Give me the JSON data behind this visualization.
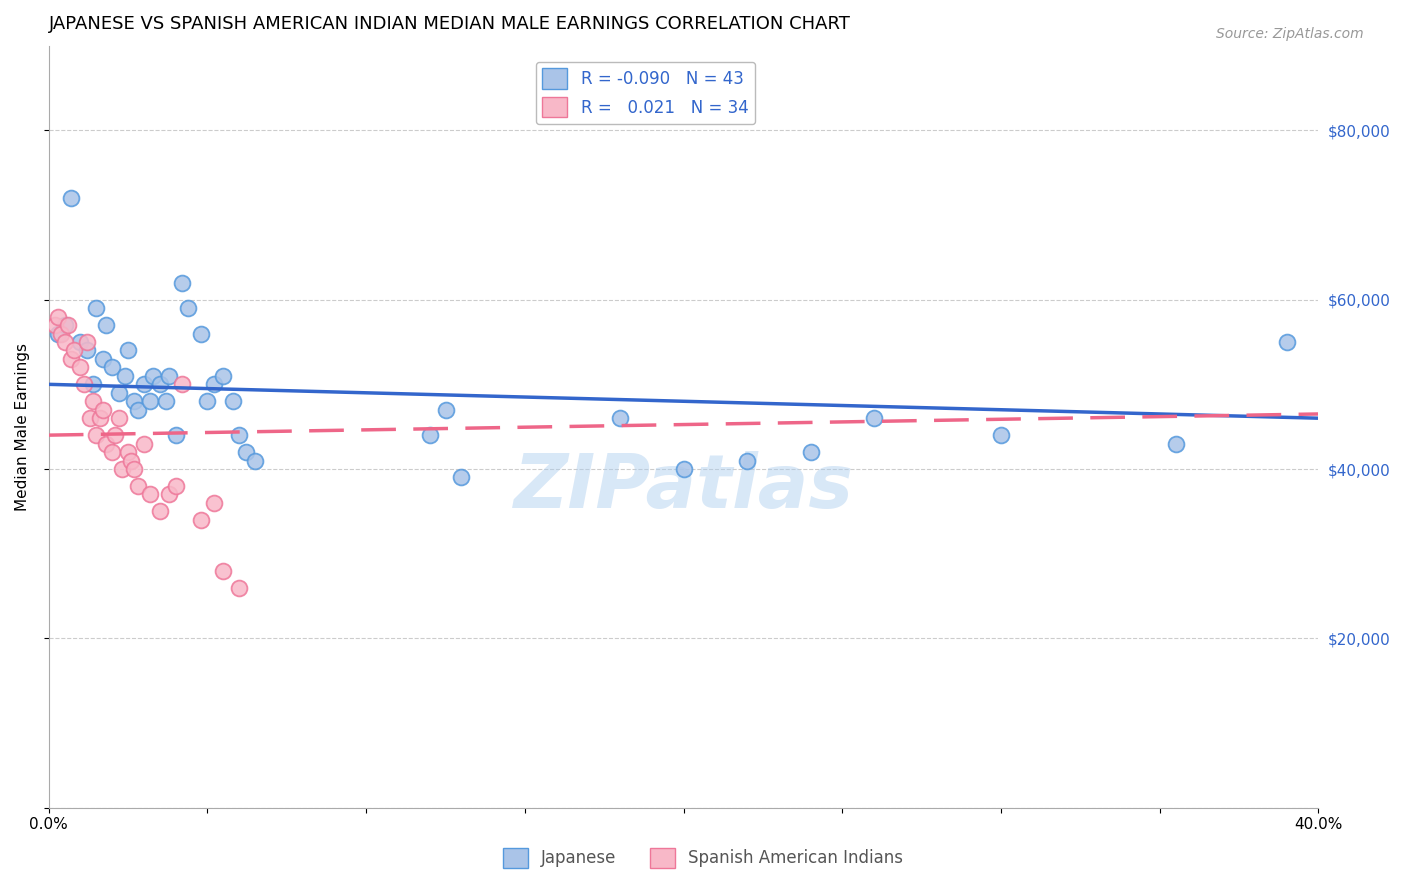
{
  "title": "JAPANESE VS SPANISH AMERICAN INDIAN MEDIAN MALE EARNINGS CORRELATION CHART",
  "source": "Source: ZipAtlas.com",
  "ylabel": "Median Male Earnings",
  "xlim": [
    0.0,
    0.4
  ],
  "ylim": [
    0,
    90000
  ],
  "yticks": [
    0,
    20000,
    40000,
    60000,
    80000
  ],
  "ytick_labels": [
    "",
    "$20,000",
    "$40,000",
    "$60,000",
    "$80,000"
  ],
  "xticks": [
    0.0,
    0.05,
    0.1,
    0.15,
    0.2,
    0.25,
    0.3,
    0.35,
    0.4
  ],
  "xtick_labels": [
    "0.0%",
    "",
    "",
    "",
    "",
    "",
    "",
    "",
    "40.0%"
  ],
  "background_color": "#ffffff",
  "grid_color": "#cccccc",
  "japanese_color": "#aac4e8",
  "japanese_edge_color": "#5599dd",
  "spanish_color": "#f8b8c8",
  "spanish_edge_color": "#ee7799",
  "blue_line_color": "#3366cc",
  "pink_line_color": "#ee6688",
  "watermark_color": "#aaccee",
  "R_japanese": -0.09,
  "N_japanese": 43,
  "R_spanish": 0.021,
  "N_spanish": 34,
  "japanese_x": [
    0.003,
    0.005,
    0.007,
    0.01,
    0.012,
    0.014,
    0.015,
    0.017,
    0.018,
    0.02,
    0.022,
    0.024,
    0.025,
    0.027,
    0.028,
    0.03,
    0.032,
    0.033,
    0.035,
    0.037,
    0.038,
    0.04,
    0.042,
    0.044,
    0.048,
    0.05,
    0.052,
    0.055,
    0.058,
    0.06,
    0.062,
    0.065,
    0.12,
    0.125,
    0.13,
    0.18,
    0.2,
    0.22,
    0.24,
    0.26,
    0.3,
    0.355,
    0.39
  ],
  "japanese_y": [
    56000,
    57000,
    72000,
    55000,
    54000,
    50000,
    59000,
    53000,
    57000,
    52000,
    49000,
    51000,
    54000,
    48000,
    47000,
    50000,
    48000,
    51000,
    50000,
    48000,
    51000,
    44000,
    62000,
    59000,
    56000,
    48000,
    50000,
    51000,
    48000,
    44000,
    42000,
    41000,
    44000,
    47000,
    39000,
    46000,
    40000,
    41000,
    42000,
    46000,
    44000,
    43000,
    55000
  ],
  "spanish_x": [
    0.002,
    0.003,
    0.004,
    0.005,
    0.006,
    0.007,
    0.008,
    0.01,
    0.011,
    0.012,
    0.013,
    0.014,
    0.015,
    0.016,
    0.017,
    0.018,
    0.02,
    0.021,
    0.022,
    0.023,
    0.025,
    0.026,
    0.027,
    0.028,
    0.03,
    0.032,
    0.035,
    0.038,
    0.04,
    0.042,
    0.048,
    0.052,
    0.055,
    0.06
  ],
  "spanish_y": [
    57000,
    58000,
    56000,
    55000,
    57000,
    53000,
    54000,
    52000,
    50000,
    55000,
    46000,
    48000,
    44000,
    46000,
    47000,
    43000,
    42000,
    44000,
    46000,
    40000,
    42000,
    41000,
    40000,
    38000,
    43000,
    37000,
    35000,
    37000,
    38000,
    50000,
    34000,
    36000,
    28000,
    26000
  ],
  "blue_line_y0": 50000,
  "blue_line_y1": 46000,
  "pink_line_y0": 44000,
  "pink_line_y1": 46500,
  "title_fontsize": 13,
  "axis_label_fontsize": 11,
  "tick_fontsize": 11,
  "legend_fontsize": 12,
  "marker_size": 130,
  "line_width": 2.5
}
